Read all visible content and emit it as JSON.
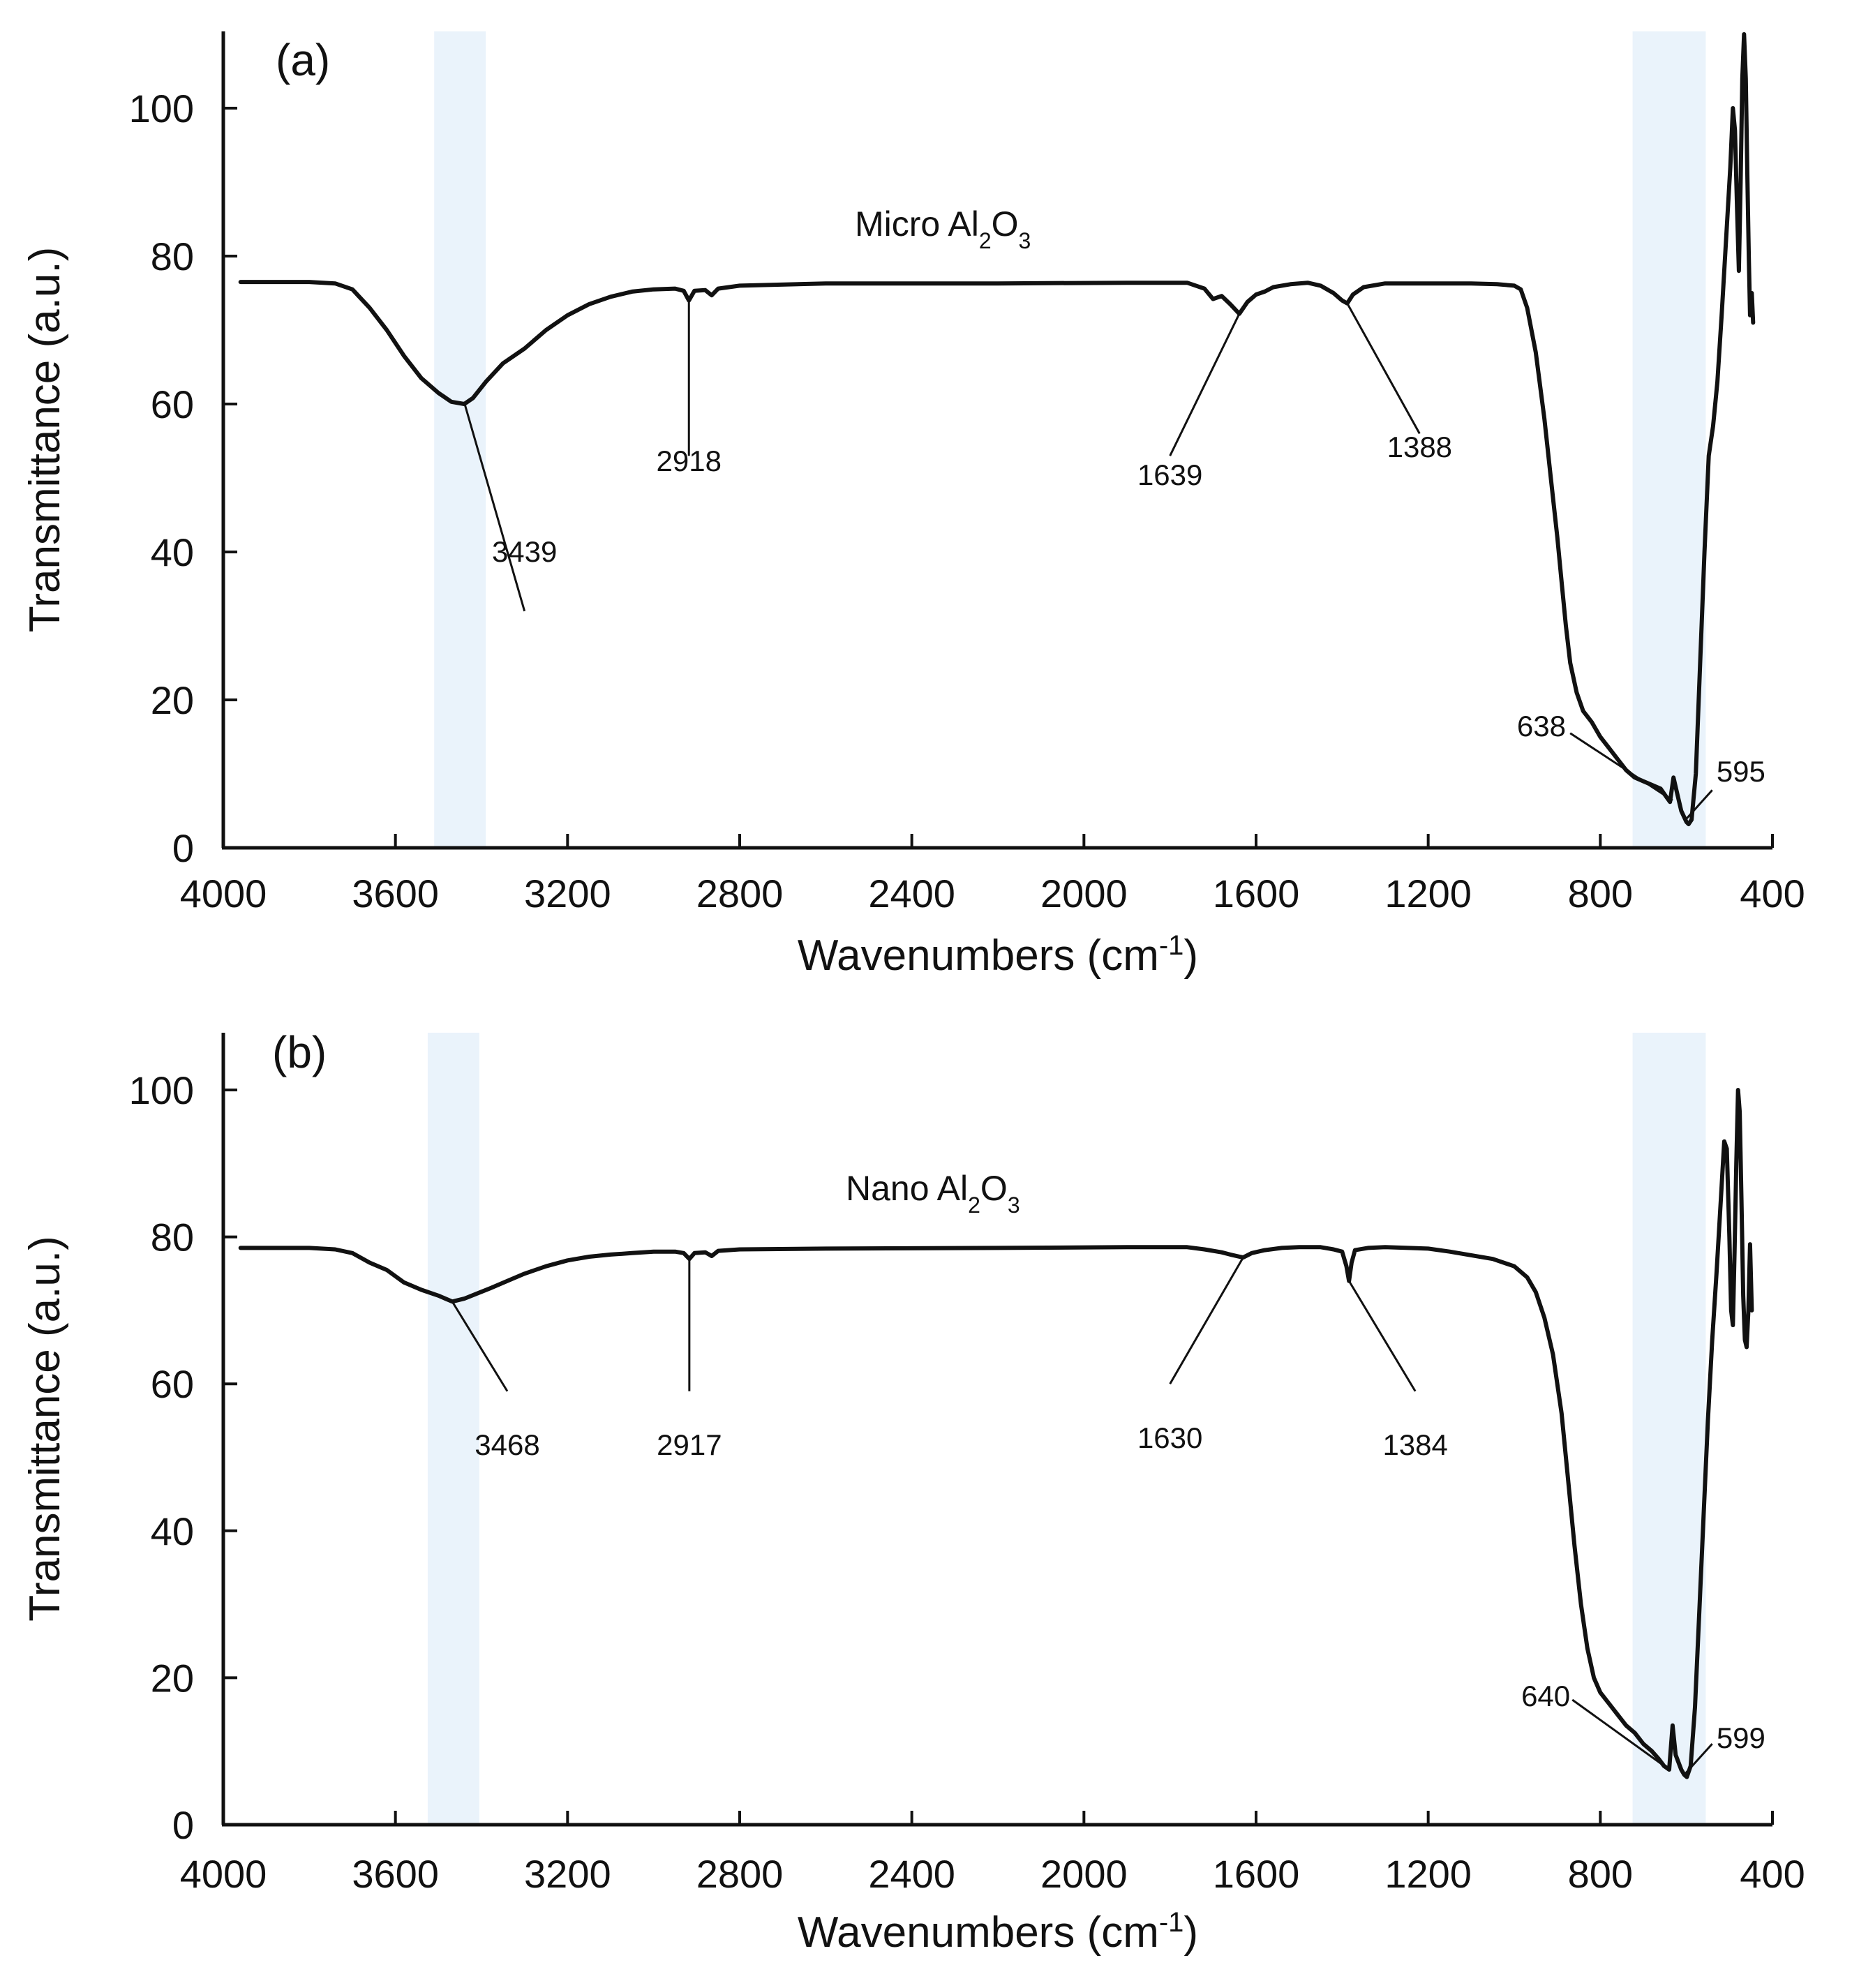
{
  "chart_data": [
    {
      "type": "line",
      "panel_label": "(a)",
      "series_name": "Micro Al2O3",
      "series_label": {
        "prefix": "Micro Al",
        "sub1": "2",
        "mid": "O",
        "sub2": "3"
      },
      "xlabel": {
        "base": "Wavenumbers (cm",
        "sup": "-1",
        "close": ")"
      },
      "ylabel": "Transmittance (a.u.)",
      "xlim": [
        4000,
        400
      ],
      "ylim": [
        0,
        110
      ],
      "x_ticks": [
        4000,
        3600,
        3200,
        2800,
        2400,
        2000,
        1600,
        1200,
        800,
        400
      ],
      "y_ticks": [
        0,
        20,
        40,
        60,
        80,
        100
      ],
      "shaded_bands": [
        [
          3510,
          3390
        ],
        [
          725,
          555
        ]
      ],
      "annotations": [
        {
          "text": "3439",
          "x": 3439
        },
        {
          "text": "2918",
          "x": 2918
        },
        {
          "text": "1639",
          "x": 1639
        },
        {
          "text": "1388",
          "x": 1388
        },
        {
          "text": "638",
          "x": 638
        },
        {
          "text": "595",
          "x": 595
        }
      ],
      "series": [
        {
          "name": "Micro Al2O3",
          "points": [
            [
              3960,
              76.5
            ],
            [
              3800,
              76.5
            ],
            [
              3740,
              76.3
            ],
            [
              3700,
              75.5
            ],
            [
              3660,
              73
            ],
            [
              3620,
              70
            ],
            [
              3580,
              66.5
            ],
            [
              3540,
              63.5
            ],
            [
              3500,
              61.5
            ],
            [
              3470,
              60.3
            ],
            [
              3440,
              60.0
            ],
            [
              3420,
              60.8
            ],
            [
              3390,
              63
            ],
            [
              3350,
              65.5
            ],
            [
              3300,
              67.5
            ],
            [
              3250,
              70
            ],
            [
              3200,
              72
            ],
            [
              3150,
              73.5
            ],
            [
              3100,
              74.5
            ],
            [
              3050,
              75.2
            ],
            [
              3000,
              75.5
            ],
            [
              2950,
              75.6
            ],
            [
              2930,
              75.3
            ],
            [
              2918,
              74.0
            ],
            [
              2905,
              75.3
            ],
            [
              2880,
              75.4
            ],
            [
              2865,
              74.7
            ],
            [
              2850,
              75.6
            ],
            [
              2800,
              76.0
            ],
            [
              2600,
              76.3
            ],
            [
              2200,
              76.3
            ],
            [
              1900,
              76.4
            ],
            [
              1760,
              76.4
            ],
            [
              1720,
              75.6
            ],
            [
              1700,
              74.2
            ],
            [
              1680,
              74.6
            ],
            [
              1660,
              73.5
            ],
            [
              1639,
              72.2
            ],
            [
              1620,
              73.8
            ],
            [
              1600,
              74.8
            ],
            [
              1580,
              75.2
            ],
            [
              1560,
              75.8
            ],
            [
              1520,
              76.2
            ],
            [
              1480,
              76.4
            ],
            [
              1450,
              76.0
            ],
            [
              1420,
              75.0
            ],
            [
              1400,
              74.0
            ],
            [
              1388,
              73.6
            ],
            [
              1375,
              74.8
            ],
            [
              1350,
              75.8
            ],
            [
              1300,
              76.3
            ],
            [
              1200,
              76.3
            ],
            [
              1100,
              76.3
            ],
            [
              1040,
              76.2
            ],
            [
              1000,
              76.0
            ],
            [
              985,
              75.5
            ],
            [
              970,
              73
            ],
            [
              950,
              67
            ],
            [
              930,
              58
            ],
            [
              915,
              50
            ],
            [
              900,
              42
            ],
            [
              890,
              36
            ],
            [
              880,
              30
            ],
            [
              870,
              25
            ],
            [
              855,
              21
            ],
            [
              840,
              18.5
            ],
            [
              820,
              17
            ],
            [
              800,
              15
            ],
            [
              780,
              13.5
            ],
            [
              760,
              12
            ],
            [
              740,
              10.5
            ],
            [
              720,
              9.5
            ],
            [
              700,
              9.0
            ],
            [
              680,
              8.5
            ],
            [
              660,
              8.0
            ],
            [
              648,
              7.0
            ],
            [
              638,
              6.2
            ],
            [
              630,
              9.5
            ],
            [
              622,
              7.5
            ],
            [
              612,
              5.0
            ],
            [
              600,
              3.5
            ],
            [
              595,
              3.2
            ],
            [
              588,
              3.8
            ],
            [
              578,
              10
            ],
            [
              568,
              25
            ],
            [
              558,
              40
            ],
            [
              548,
              53
            ],
            [
              538,
              57
            ],
            [
              528,
              63
            ],
            [
              518,
              72
            ],
            [
              508,
              82
            ],
            [
              498,
              92
            ],
            [
              492,
              100
            ],
            [
              487,
              97
            ],
            [
              482,
              86
            ],
            [
              478,
              78
            ],
            [
              474,
              90
            ],
            [
              470,
              104
            ],
            [
              466,
              110
            ],
            [
              462,
              104
            ],
            [
              458,
              90
            ],
            [
              455,
              80
            ],
            [
              452,
              72
            ],
            [
              448,
              75
            ],
            [
              445,
              71
            ]
          ]
        }
      ]
    },
    {
      "type": "line",
      "panel_label": "(b)",
      "series_name": "Nano Al2O3",
      "series_label": {
        "prefix": "Nano Al",
        "sub1": "2",
        "mid": "O",
        "sub2": "3"
      },
      "xlabel": {
        "base": "Wavenumbers (cm",
        "sup": "-1",
        "close": ")"
      },
      "ylabel": "Transmittance (a.u.)",
      "xlim": [
        4000,
        400
      ],
      "ylim": [
        0,
        108
      ],
      "x_ticks": [
        4000,
        3600,
        3200,
        2800,
        2400,
        2000,
        1600,
        1200,
        800,
        400
      ],
      "y_ticks": [
        0,
        20,
        40,
        60,
        80,
        100
      ],
      "shaded_bands": [
        [
          3525,
          3405
        ],
        [
          725,
          555
        ]
      ],
      "annotations": [
        {
          "text": "3468",
          "x": 3468
        },
        {
          "text": "2917",
          "x": 2917
        },
        {
          "text": "1630",
          "x": 1630
        },
        {
          "text": "1384",
          "x": 1384
        },
        {
          "text": "640",
          "x": 640
        },
        {
          "text": "599",
          "x": 599
        }
      ],
      "series": [
        {
          "name": "Nano Al2O3",
          "points": [
            [
              3960,
              78.5
            ],
            [
              3800,
              78.5
            ],
            [
              3740,
              78.3
            ],
            [
              3700,
              77.8
            ],
            [
              3660,
              76.5
            ],
            [
              3620,
              75.5
            ],
            [
              3580,
              73.8
            ],
            [
              3540,
              72.8
            ],
            [
              3500,
              72.0
            ],
            [
              3468,
              71.2
            ],
            [
              3440,
              71.6
            ],
            [
              3410,
              72.3
            ],
            [
              3380,
              73.0
            ],
            [
              3340,
              74.0
            ],
            [
              3300,
              75.0
            ],
            [
              3250,
              76.0
            ],
            [
              3200,
              76.8
            ],
            [
              3150,
              77.3
            ],
            [
              3100,
              77.6
            ],
            [
              3050,
              77.8
            ],
            [
              3000,
              78.0
            ],
            [
              2950,
              78.0
            ],
            [
              2930,
              77.8
            ],
            [
              2917,
              77.0
            ],
            [
              2905,
              77.8
            ],
            [
              2880,
              77.9
            ],
            [
              2865,
              77.4
            ],
            [
              2850,
              78.1
            ],
            [
              2800,
              78.3
            ],
            [
              2600,
              78.4
            ],
            [
              2200,
              78.5
            ],
            [
              1900,
              78.6
            ],
            [
              1760,
              78.6
            ],
            [
              1720,
              78.3
            ],
            [
              1680,
              77.9
            ],
            [
              1660,
              77.6
            ],
            [
              1630,
              77.2
            ],
            [
              1610,
              77.8
            ],
            [
              1580,
              78.2
            ],
            [
              1540,
              78.5
            ],
            [
              1500,
              78.6
            ],
            [
              1450,
              78.6
            ],
            [
              1420,
              78.3
            ],
            [
              1400,
              78.0
            ],
            [
              1390,
              76.0
            ],
            [
              1384,
              74.0
            ],
            [
              1378,
              76.5
            ],
            [
              1370,
              78.2
            ],
            [
              1340,
              78.5
            ],
            [
              1300,
              78.6
            ],
            [
              1200,
              78.4
            ],
            [
              1150,
              78.0
            ],
            [
              1100,
              77.5
            ],
            [
              1050,
              77.0
            ],
            [
              1000,
              76.0
            ],
            [
              970,
              74.5
            ],
            [
              950,
              72.5
            ],
            [
              930,
              69
            ],
            [
              910,
              64
            ],
            [
              890,
              56
            ],
            [
              875,
              47
            ],
            [
              860,
              38
            ],
            [
              845,
              30
            ],
            [
              830,
              24
            ],
            [
              815,
              20
            ],
            [
              800,
              18
            ],
            [
              780,
              16.5
            ],
            [
              760,
              15
            ],
            [
              740,
              13.5
            ],
            [
              720,
              12.5
            ],
            [
              700,
              11
            ],
            [
              680,
              10
            ],
            [
              665,
              9.0
            ],
            [
              652,
              8.0
            ],
            [
              640,
              7.5
            ],
            [
              632,
              13.5
            ],
            [
              625,
              9.5
            ],
            [
              612,
              7.5
            ],
            [
              605,
              6.8
            ],
            [
              599,
              6.5
            ],
            [
              590,
              8
            ],
            [
              580,
              16
            ],
            [
              570,
              29
            ],
            [
              560,
              42
            ],
            [
              550,
              55
            ],
            [
              540,
              66
            ],
            [
              530,
              75
            ],
            [
              520,
              85
            ],
            [
              512,
              93
            ],
            [
              506,
              92
            ],
            [
              500,
              80
            ],
            [
              496,
              70
            ],
            [
              492,
              68
            ],
            [
              488,
              78
            ],
            [
              484,
              90
            ],
            [
              480,
              100
            ],
            [
              476,
              97
            ],
            [
              472,
              85
            ],
            [
              468,
              72
            ],
            [
              464,
              66
            ],
            [
              460,
              65
            ],
            [
              456,
              70
            ],
            [
              452,
              79
            ],
            [
              448,
              70
            ]
          ]
        }
      ]
    }
  ]
}
